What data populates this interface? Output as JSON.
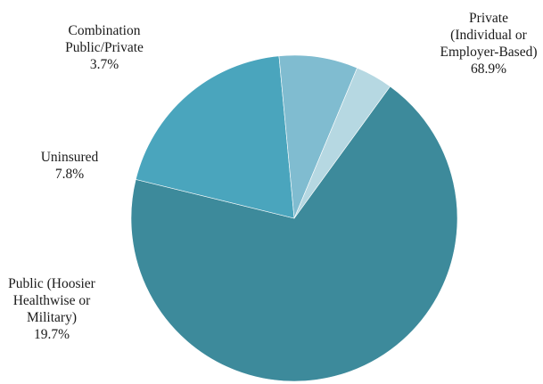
{
  "chart_data": {
    "type": "pie",
    "title": "",
    "start_angle_deg": -54,
    "direction": "clockwise",
    "slices": [
      {
        "label_lines": [
          "Private",
          "(Individual or",
          "Employer-Based)"
        ],
        "value": 68.9,
        "value_label": "68.9%",
        "color": "#3d8a9b"
      },
      {
        "label_lines": [
          "Public (Hoosier",
          "Healthwise or",
          "Military)"
        ],
        "value": 19.7,
        "value_label": "19.7%",
        "color": "#4aa5bd"
      },
      {
        "label_lines": [
          "Uninsured"
        ],
        "value": 7.8,
        "value_label": "7.8%",
        "color": "#80bcd0"
      },
      {
        "label_lines": [
          "Combination",
          "Public/Private"
        ],
        "value": 3.7,
        "value_label": "3.7%",
        "color": "#b6d8e2"
      }
    ]
  }
}
